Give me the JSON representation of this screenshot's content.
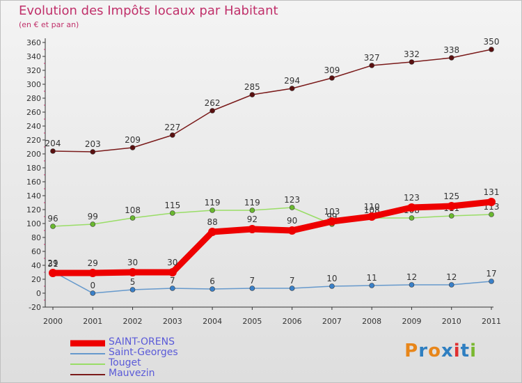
{
  "header": {
    "title": "Evolution des Impôts locaux par Habitant",
    "subtitle": "(en € et par an)"
  },
  "logo": {
    "text": "Proxiti",
    "letters": [
      "P",
      "r",
      "o",
      "x",
      "i",
      "t",
      "i"
    ],
    "colors": [
      "#e8861a",
      "#2f7fc1",
      "#e8861a",
      "#2f7fc1",
      "#e03030",
      "#2f7fc1",
      "#7ab830"
    ]
  },
  "chart_data": {
    "type": "line",
    "title": "Evolution des Impôts locaux par Habitant",
    "subtitle": "(en € et par an)",
    "xlabel": "",
    "ylabel": "",
    "grid": false,
    "ylim": [
      -20,
      360
    ],
    "ytick_step": 20,
    "x": [
      "2000",
      "2001",
      "2002",
      "2003",
      "2004",
      "2005",
      "2006",
      "2007",
      "2008",
      "2009",
      "2010",
      "2011"
    ],
    "legend_position": "bottom-left",
    "series": [
      {
        "name": "Mauvezin",
        "color": "#7a1a1a",
        "marker_color": "#5a1010",
        "values": [
          204,
          203,
          209,
          227,
          262,
          285,
          294,
          309,
          327,
          332,
          338,
          350
        ],
        "labels": [
          "204",
          "203",
          "209",
          "227",
          "262",
          "285",
          "294",
          "309",
          "327",
          "332",
          "338",
          "350"
        ]
      },
      {
        "name": "Touget",
        "color": "#99dd66",
        "marker_color": "#6ab830",
        "values": [
          96,
          99,
          108,
          115,
          119,
          119,
          123,
          99,
          108,
          108,
          111,
          113
        ],
        "labels": [
          "96",
          "99",
          "108",
          "115",
          "119",
          "119",
          "123",
          "99",
          "108",
          "108",
          "111",
          "113"
        ]
      },
      {
        "name": "Saint-Georges",
        "color": "#6699cc",
        "marker_color": "#3a80c8",
        "values": [
          31,
          0,
          5,
          7,
          6,
          7,
          7,
          10,
          11,
          12,
          12,
          17
        ],
        "labels": [
          "31",
          "0",
          "5",
          "7",
          "6",
          "7",
          "7",
          "10",
          "11",
          "12",
          "12",
          "17"
        ]
      },
      {
        "name": "SAINT-ORENS",
        "color": "#ee0000",
        "marker_color": "#ee0000",
        "values": [
          29,
          29,
          30,
          30,
          88,
          92,
          90,
          103,
          110,
          123,
          125,
          131
        ],
        "labels": [
          "29",
          "29",
          "30",
          "30",
          "88",
          "92",
          "90",
          "103",
          "110",
          "123",
          "125",
          "131"
        ]
      }
    ],
    "legend_order": [
      "SAINT-ORENS",
      "Saint-Georges",
      "Touget",
      "Mauvezin"
    ]
  }
}
